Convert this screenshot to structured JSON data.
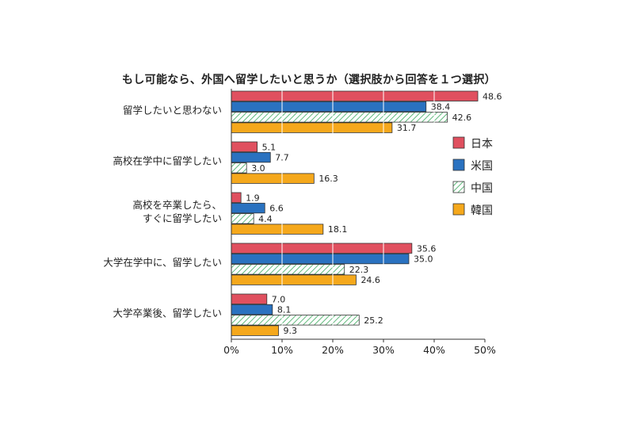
{
  "chart_data": {
    "type": "bar",
    "orientation": "horizontal",
    "title": "もし可能なら、外国へ留学したいと思うか（選択肢から回答を１つ選択）",
    "categories": [
      "留学したいと思わない",
      "高校在学中に留学したい",
      "高校を卒業したら、\nすぐに留学したい",
      "大学在学中に、留学したい",
      "大学卒業後、留学したい"
    ],
    "series": [
      {
        "name": "日本",
        "color": "#e0505f",
        "pattern": "solid",
        "values": [
          48.6,
          5.1,
          1.9,
          35.6,
          7.0
        ]
      },
      {
        "name": "米国",
        "color": "#2a72c0",
        "pattern": "solid",
        "values": [
          38.4,
          7.7,
          6.6,
          35.0,
          8.1
        ]
      },
      {
        "name": "中国",
        "color": "#3aa85c",
        "pattern": "hatch",
        "values": [
          42.6,
          3.0,
          4.4,
          22.3,
          25.2
        ]
      },
      {
        "name": "韓国",
        "color": "#f5a81c",
        "pattern": "solid",
        "values": [
          31.7,
          16.3,
          18.1,
          24.6,
          9.3
        ]
      }
    ],
    "value_labels": [
      [
        "48.6",
        "5.1",
        "1.9",
        "35.6",
        "7.0"
      ],
      [
        "38.4",
        "7.7",
        "6.6",
        "35.0",
        "8.1"
      ],
      [
        "42.6",
        "3.0",
        "4.4",
        "22.3",
        "25.2"
      ],
      [
        "31.7",
        "16.3",
        "18.1",
        "24.6",
        "9.3"
      ]
    ],
    "x_ticks": [
      "0%",
      "10%",
      "20%",
      "30%",
      "40%",
      "50%"
    ],
    "xlim": [
      0,
      50
    ],
    "grid": "vertical lines at 10% intervals",
    "legend": "right"
  }
}
